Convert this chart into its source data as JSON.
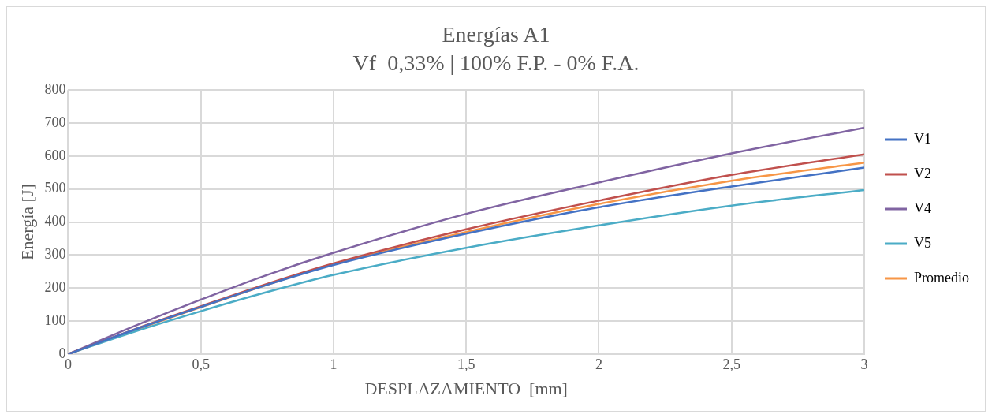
{
  "chart_data": {
    "type": "line",
    "title": "Energías A1",
    "subtitle": "Vf  0,33% | 100% F.P. - 0% F.A.",
    "xlabel": "DESPLAZAMIENTO  [mm]",
    "ylabel": "Energía [J]",
    "x": [
      0,
      0.25,
      0.5,
      0.75,
      1,
      1.5,
      2,
      2.5,
      3
    ],
    "series": [
      {
        "name": "V1",
        "color": "#4472c4",
        "values": [
          0,
          74,
          143,
          210,
          270,
          365,
          445,
          508,
          565
        ]
      },
      {
        "name": "V2",
        "color": "#c0504d",
        "values": [
          0,
          75,
          145,
          213,
          275,
          378,
          465,
          543,
          605
        ]
      },
      {
        "name": "V4",
        "color": "#8064a2",
        "values": [
          0,
          85,
          165,
          240,
          307,
          425,
          520,
          608,
          686
        ]
      },
      {
        "name": "V5",
        "color": "#4bacc6",
        "values": [
          0,
          68,
          130,
          188,
          240,
          322,
          390,
          450,
          497
        ]
      },
      {
        "name": "Promedio",
        "color": "#f79646",
        "values": [
          0,
          73,
          142,
          210,
          272,
          370,
          455,
          525,
          580
        ]
      }
    ],
    "xlim": [
      0,
      3
    ],
    "xticks": [
      0,
      {
        "value": 0.5,
        "label": "0,5"
      },
      1,
      {
        "value": 1.5,
        "label": "1,5"
      },
      2,
      {
        "value": 2.5,
        "label": "2,5"
      },
      3
    ],
    "ylim": [
      0,
      800
    ],
    "yticks": [
      0,
      100,
      200,
      300,
      400,
      500,
      600,
      700,
      800
    ],
    "grid": true,
    "legend": "right",
    "marker": "none",
    "line_style": "solid"
  }
}
